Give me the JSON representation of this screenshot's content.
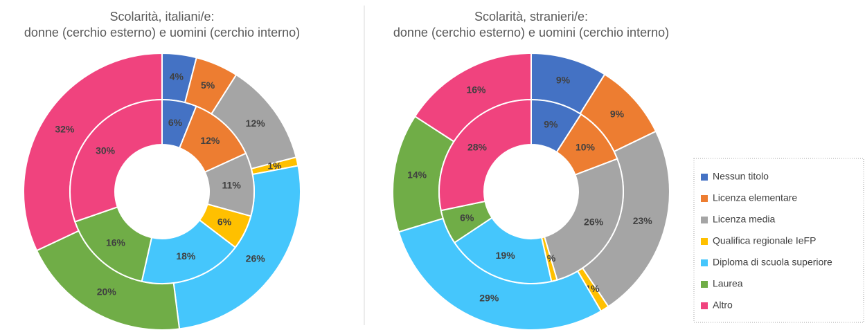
{
  "chart_data": [
    {
      "type": "doughnut",
      "title": [
        "Scolarità, italiani/e:",
        "donne (cerchio esterno) e uomini (cerchio interno)"
      ],
      "categories": [
        "Nessun titolo",
        "Licenza elementare",
        "Licenza media",
        "Qualifica regionale IeFP",
        "Diploma di scuola superiore",
        "Laurea",
        "Altro"
      ],
      "colors": [
        "#4472c4",
        "#ed7d31",
        "#a5a5a5",
        "#ffc000",
        "#45c6fc",
        "#70ad47",
        "#f0437e"
      ],
      "series": [
        {
          "values": [
            4,
            5,
            12,
            1,
            26,
            20,
            32
          ],
          "value_labels": [
            "4%",
            "5%",
            "12%",
            "1%",
            "26%",
            "20%",
            "32%"
          ]
        },
        {
          "values": [
            6,
            12,
            11,
            6,
            18,
            16,
            30
          ],
          "value_labels": [
            "6%",
            "12%",
            "11%",
            "6%",
            "18%",
            "16%",
            "30%"
          ]
        }
      ]
    },
    {
      "type": "doughnut",
      "title": [
        "Scolarità, stranieri/e:",
        "donne (cerchio esterno) e uomini (cerchio interno)"
      ],
      "categories": [
        "Nessun titolo",
        "Licenza elementare",
        "Licenza media",
        "Qualifica regionale IeFP",
        "Diploma di scuola superiore",
        "Laurea",
        "Altro"
      ],
      "colors": [
        "#4472c4",
        "#ed7d31",
        "#a5a5a5",
        "#ffc000",
        "#45c6fc",
        "#70ad47",
        "#f0437e"
      ],
      "series": [
        {
          "values": [
            9,
            9,
            23,
            1,
            29,
            14,
            16
          ],
          "value_labels": [
            "9%",
            "9%",
            "23%",
            "1%",
            "29%",
            "14%",
            "16%"
          ]
        },
        {
          "values": [
            9,
            10,
            26,
            1,
            19,
            6,
            28
          ],
          "value_labels": [
            "9%",
            "10%",
            "26%",
            "1%",
            "19%",
            "6%",
            "28%"
          ]
        }
      ]
    }
  ]
}
